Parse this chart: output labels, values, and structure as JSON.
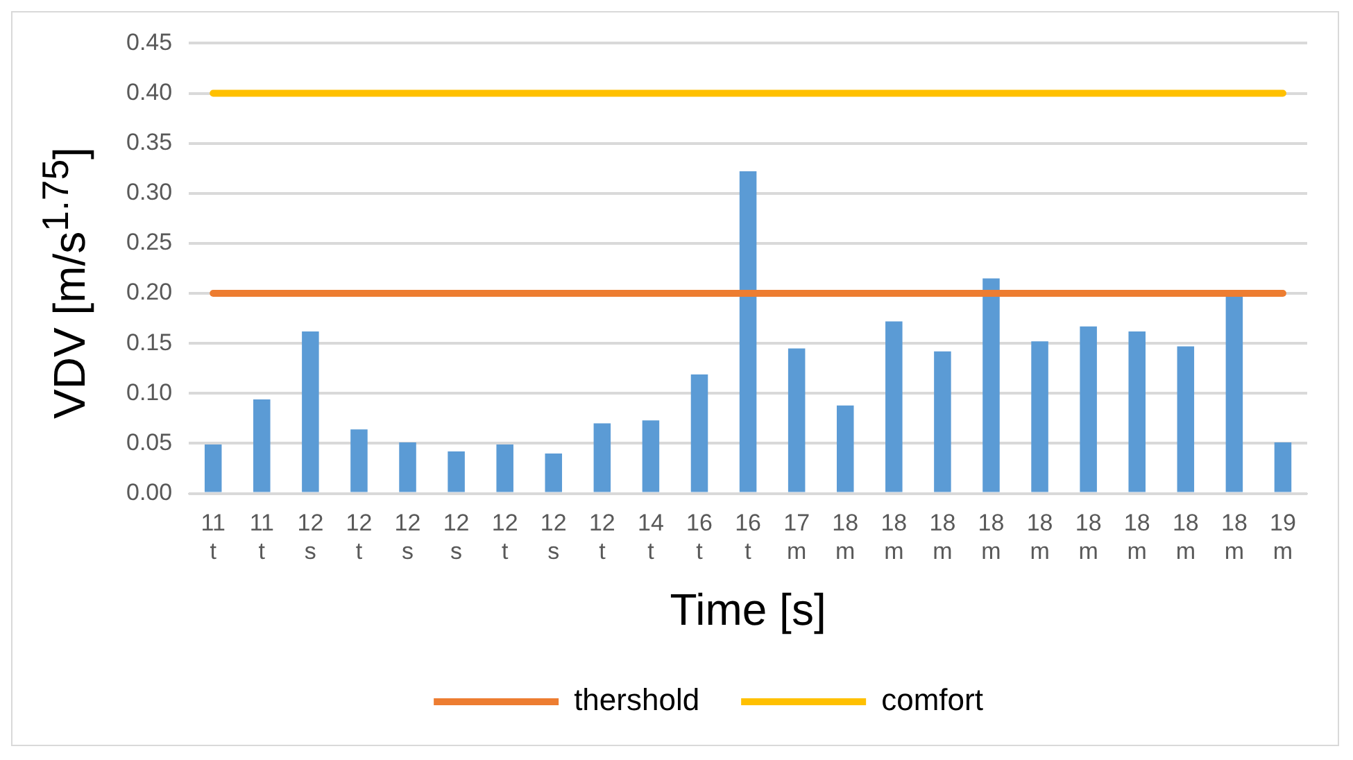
{
  "chart_data": {
    "type": "bar",
    "xlabel": "Time [s]",
    "ylabel": "VDV [m/s$^{1.75}$]",
    "categories": [
      "11\nt",
      "11\nt",
      "12\ns",
      "12\nt",
      "12\ns",
      "12\ns",
      "12\nt",
      "12\ns",
      "12\nt",
      "14\nt",
      "16\nt",
      "16\nt",
      "17\nm",
      "18\nm",
      "18\nm",
      "18\nm",
      "18\nm",
      "18\nm",
      "18\nm",
      "18\nm",
      "18\nm",
      "18\nm",
      "19\nm"
    ],
    "series": [
      {
        "color": "#5b9bd5",
        "values": [
          0.049,
          0.094,
          0.162,
          0.064,
          0.051,
          0.042,
          0.049,
          0.04,
          0.07,
          0.073,
          0.119,
          0.322,
          0.145,
          0.088,
          0.172,
          0.142,
          0.215,
          0.152,
          0.167,
          0.162,
          0.147,
          0.199,
          0.051
        ]
      },
      {
        "type": "line",
        "name": "thershold",
        "color": "#ed7d31",
        "values": [
          0.2,
          0.2,
          0.2,
          0.2,
          0.2,
          0.2,
          0.2,
          0.2,
          0.2,
          0.2,
          0.2,
          0.2,
          0.2,
          0.2,
          0.2,
          0.2,
          0.2,
          0.2,
          0.2,
          0.2,
          0.2,
          0.2,
          0.2
        ]
      },
      {
        "type": "line",
        "name": "comfort",
        "color": "#ffc000",
        "values": [
          0.4,
          0.4,
          0.4,
          0.4,
          0.4,
          0.4,
          0.4,
          0.4,
          0.4,
          0.4,
          0.4,
          0.4,
          0.4,
          0.4,
          0.4,
          0.4,
          0.4,
          0.4,
          0.4,
          0.4,
          0.4,
          0.4,
          0.4
        ]
      }
    ],
    "ylim": [
      0,
      0.45
    ],
    "yticks": [
      {
        "value": 0,
        "label": "0.00"
      },
      {
        "value": 0.05,
        "label": "0.05"
      },
      {
        "value": 0.1,
        "label": "0.10"
      },
      {
        "value": 0.15,
        "label": "0.15"
      },
      {
        "value": 0.2,
        "label": "0.20"
      },
      {
        "value": 0.25,
        "label": "0.25"
      },
      {
        "value": 0.3,
        "label": "0.30"
      },
      {
        "value": 0.35,
        "label": "0.35"
      },
      {
        "value": 0.4,
        "label": "0.40"
      },
      {
        "value": 0.45,
        "label": "0.45"
      }
    ],
    "grid": "y",
    "legend": "bottom",
    "marker": "none"
  }
}
